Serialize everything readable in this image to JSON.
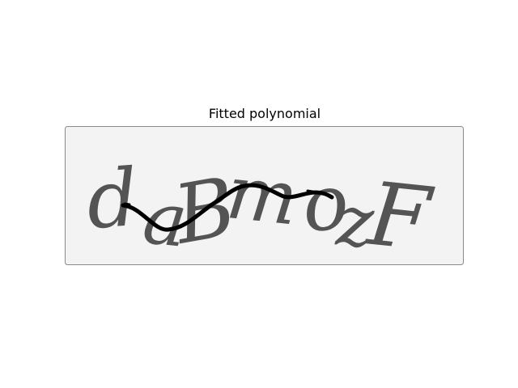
{
  "figure": {
    "title": "Fitted polynomial",
    "captcha_text": "daBmozF",
    "colors": {
      "background": "#f3f3f3",
      "glyph": "#545454",
      "curve": "#000000",
      "border": "#8a8a8a"
    }
  }
}
